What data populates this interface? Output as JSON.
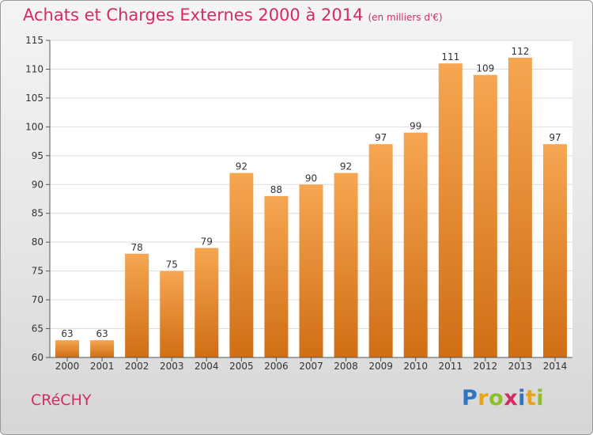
{
  "header": {
    "title": "Achats et Charges Externes 2000 à 2014",
    "subtitle": "(en milliers d'€)"
  },
  "footer": {
    "town": "CRéCHY",
    "brand_letters": [
      {
        "ch": "P",
        "color": "#2e75c6"
      },
      {
        "ch": "r",
        "color": "#e8a317"
      },
      {
        "ch": "o",
        "color": "#8fbe2c"
      },
      {
        "ch": "x",
        "color": "#d42a66"
      },
      {
        "ch": "i",
        "color": "#2e75c6"
      },
      {
        "ch": "t",
        "color": "#e8a317"
      },
      {
        "ch": "i",
        "color": "#8fbe2c"
      }
    ]
  },
  "colors": {
    "accent": "#d42a66",
    "bar_top": "#f6a651",
    "bar_bottom": "#d06e15"
  },
  "chart_data": {
    "type": "bar",
    "categories": [
      "2000",
      "2001",
      "2002",
      "2003",
      "2004",
      "2005",
      "2006",
      "2007",
      "2008",
      "2009",
      "2010",
      "2011",
      "2012",
      "2013",
      "2014"
    ],
    "values": [
      63,
      63,
      78,
      75,
      79,
      92,
      88,
      90,
      92,
      97,
      99,
      111,
      109,
      112,
      97
    ],
    "ylim": [
      60,
      115
    ],
    "yticks": [
      60,
      65,
      70,
      75,
      80,
      85,
      90,
      95,
      100,
      105,
      110,
      115
    ],
    "grid": true
  }
}
